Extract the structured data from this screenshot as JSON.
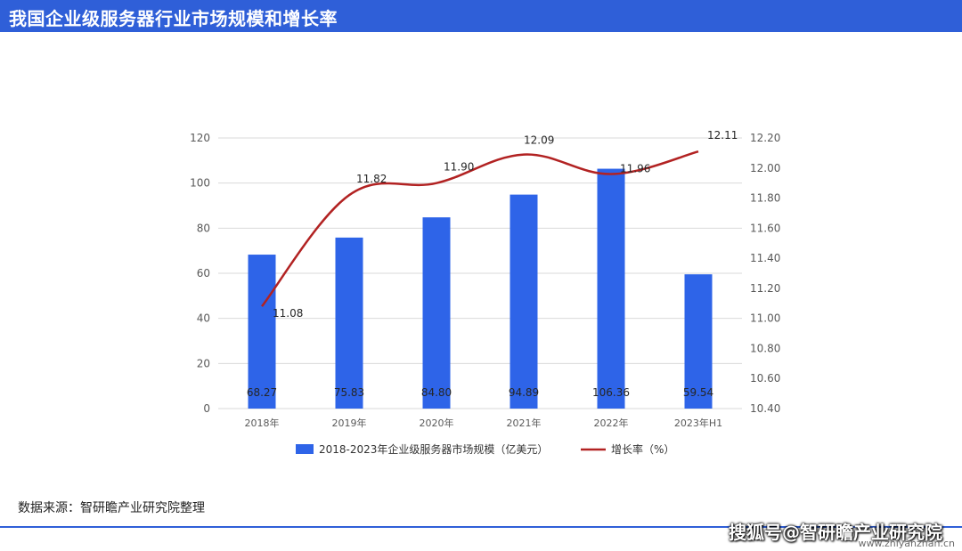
{
  "header": {
    "title": "我国企业级服务器行业市场规模和增长率"
  },
  "footer": {
    "source": "数据来源：智研瞻产业研究院整理",
    "credit": "搜狐号@智研瞻产业研究院",
    "url": "www.zhiyanzhan.cn"
  },
  "colors": {
    "bar": "#2e64e8",
    "line": "#b22222",
    "header": "#2f5fd8"
  },
  "chart_data": {
    "type": "bar+line",
    "categories": [
      "2018年",
      "2019年",
      "2020年",
      "2021年",
      "2022年",
      "2023年H1"
    ],
    "series": [
      {
        "name": "2018-2023年企业级服务器市场规模（亿美元）",
        "type": "bar",
        "axis": "left",
        "values": [
          68.27,
          75.83,
          84.8,
          94.89,
          106.36,
          59.54
        ],
        "labels": [
          "68.27",
          "75.83",
          "84.80",
          "94.89",
          "106.36",
          "59.54"
        ]
      },
      {
        "name": "增长率（%）",
        "type": "line",
        "axis": "right",
        "values": [
          11.08,
          11.82,
          11.9,
          12.09,
          11.96,
          12.11
        ],
        "labels": [
          "11.08",
          "11.82",
          "11.90",
          "12.09",
          "11.96",
          "12.11"
        ]
      }
    ],
    "y_left": {
      "min": 0,
      "max": 120,
      "ticks": [
        "0",
        "20",
        "40",
        "60",
        "80",
        "100",
        "120"
      ]
    },
    "y_right": {
      "min": 10.4,
      "max": 12.2,
      "ticks": [
        "10.40",
        "10.60",
        "10.80",
        "11.00",
        "11.20",
        "11.40",
        "11.60",
        "11.80",
        "12.00",
        "12.20"
      ]
    },
    "grid": true,
    "legend_position": "bottom"
  }
}
